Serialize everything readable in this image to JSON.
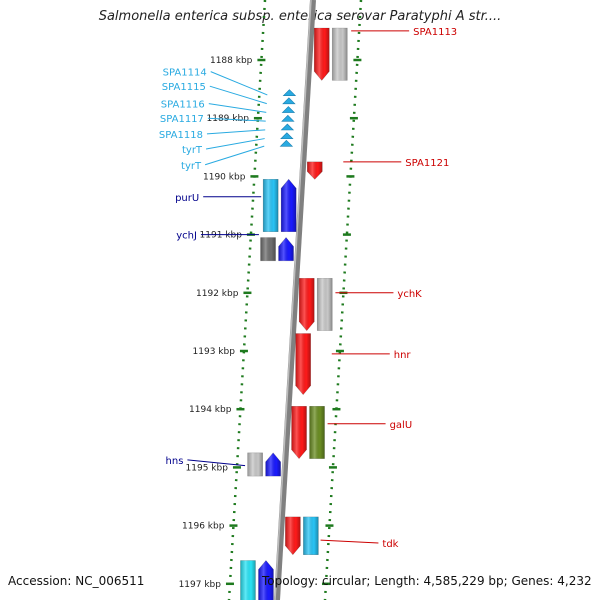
{
  "title": "Salmonella enterica subsp. enterica serovar Paratyphi A str....",
  "footer": {
    "accession": "Accession: NC_006511",
    "summary": "Topology: circular; Length: 4,585,229 bp; Genes: 4,232"
  },
  "colors": {
    "backbone": "#808080",
    "tick": "#1e7a1e",
    "label_kbp": "#222222",
    "cyan_label": "#29aae1",
    "blue_label": "#00008b",
    "red_label": "#cc0000"
  },
  "scale": {
    "ticks": [
      {
        "pos": 1188,
        "label": "1188 kbp"
      },
      {
        "pos": 1189,
        "label": "1189 kbp"
      },
      {
        "pos": 1190,
        "label": "1190 kbp"
      },
      {
        "pos": 1191,
        "label": "1191 kbp"
      },
      {
        "pos": 1192,
        "label": "1192 kbp"
      },
      {
        "pos": 1193,
        "label": "1193 kbp"
      },
      {
        "pos": 1194,
        "label": "1194 kbp"
      },
      {
        "pos": 1195,
        "label": "1195 kbp"
      },
      {
        "pos": 1196,
        "label": "1196 kbp"
      },
      {
        "pos": 1197,
        "label": "1197 kbp"
      }
    ]
  },
  "genes": [
    {
      "track": "plus-inner",
      "start": 1187.45,
      "end": 1188.35,
      "color": "#ff1a1a",
      "dir": "down"
    },
    {
      "track": "plus-outer",
      "start": 1187.45,
      "end": 1188.35,
      "color": "#c8c8c8",
      "dir": "none"
    },
    {
      "track": "plus-inner",
      "start": 1189.75,
      "end": 1190.05,
      "color": "#ff1a1a",
      "dir": "down"
    },
    {
      "track": "minus-inner",
      "start": 1190.05,
      "end": 1190.95,
      "color": "#1a1aff",
      "dir": "up"
    },
    {
      "track": "minus-outer",
      "start": 1190.05,
      "end": 1190.95,
      "color": "#29c4f6",
      "dir": "none"
    },
    {
      "track": "minus-inner",
      "start": 1191.05,
      "end": 1191.45,
      "color": "#1a1aff",
      "dir": "up"
    },
    {
      "track": "minus-outer",
      "start": 1191.05,
      "end": 1191.45,
      "color": "#707070",
      "dir": "none"
    },
    {
      "track": "plus-inner",
      "start": 1191.75,
      "end": 1192.65,
      "color": "#ff1a1a",
      "dir": "down"
    },
    {
      "track": "plus-outer",
      "start": 1191.75,
      "end": 1192.65,
      "color": "#c8c8c8",
      "dir": "none"
    },
    {
      "track": "plus-inner",
      "start": 1192.7,
      "end": 1193.75,
      "color": "#ff1a1a",
      "dir": "down"
    },
    {
      "track": "plus-inner",
      "start": 1193.95,
      "end": 1194.85,
      "color": "#ff1a1a",
      "dir": "down"
    },
    {
      "track": "plus-outer",
      "start": 1193.95,
      "end": 1194.85,
      "color": "#6b8e23",
      "dir": "none"
    },
    {
      "track": "minus-inner",
      "start": 1194.75,
      "end": 1195.15,
      "color": "#1a1aff",
      "dir": "up"
    },
    {
      "track": "minus-outer",
      "start": 1194.75,
      "end": 1195.15,
      "color": "#c8c8c8",
      "dir": "none"
    },
    {
      "track": "plus-inner",
      "start": 1195.85,
      "end": 1196.5,
      "color": "#ff1a1a",
      "dir": "down"
    },
    {
      "track": "plus-outer",
      "start": 1195.85,
      "end": 1196.5,
      "color": "#29c4f6",
      "dir": "none"
    },
    {
      "track": "minus-inner",
      "start": 1196.6,
      "end": 1197.4,
      "color": "#1a1aff",
      "dir": "up"
    },
    {
      "track": "minus-outer",
      "start": 1196.6,
      "end": 1197.4,
      "color": "#29e4f6",
      "dir": "none"
    }
  ],
  "trnas": [
    {
      "pos": 1188.57
    },
    {
      "pos": 1188.71
    },
    {
      "pos": 1188.86
    },
    {
      "pos": 1189.01
    },
    {
      "pos": 1189.16
    },
    {
      "pos": 1189.31
    },
    {
      "pos": 1189.44
    }
  ],
  "labels": [
    {
      "text": "SPA1113",
      "side": "right",
      "pos": 1187.5,
      "target": 1187.5,
      "color": "#cc0000"
    },
    {
      "text": "SPA1114",
      "side": "left",
      "pos": 1188.2,
      "target": 1188.6,
      "color": "#29aae1"
    },
    {
      "text": "SPA1115",
      "side": "left",
      "pos": 1188.45,
      "target": 1188.75,
      "color": "#29aae1"
    },
    {
      "text": "SPA1116",
      "side": "left",
      "pos": 1188.75,
      "target": 1188.9,
      "color": "#29aae1"
    },
    {
      "text": "SPA1117",
      "side": "left",
      "pos": 1189.0,
      "target": 1189.05,
      "color": "#29aae1"
    },
    {
      "text": "SPA1118",
      "side": "left",
      "pos": 1189.27,
      "target": 1189.2,
      "color": "#29aae1"
    },
    {
      "text": "tyrT",
      "side": "left",
      "pos": 1189.53,
      "target": 1189.35,
      "color": "#29aae1"
    },
    {
      "text": "tyrT",
      "side": "left",
      "pos": 1189.8,
      "target": 1189.48,
      "color": "#29aae1"
    },
    {
      "text": "SPA1121",
      "side": "right",
      "pos": 1189.75,
      "target": 1189.75,
      "color": "#cc0000"
    },
    {
      "text": "purU",
      "side": "left",
      "pos": 1190.35,
      "target": 1190.35,
      "color": "#00008b"
    },
    {
      "text": "ychJ",
      "side": "left",
      "pos": 1191.0,
      "target": 1191.0,
      "color": "#00008b"
    },
    {
      "text": "ychK",
      "side": "right",
      "pos": 1192.0,
      "target": 1192.0,
      "color": "#cc0000"
    },
    {
      "text": "hnr",
      "side": "right",
      "pos": 1193.05,
      "target": 1193.05,
      "color": "#cc0000"
    },
    {
      "text": "galU",
      "side": "right",
      "pos": 1194.25,
      "target": 1194.25,
      "color": "#cc0000"
    },
    {
      "text": "hns",
      "side": "left",
      "pos": 1194.87,
      "target": 1194.97,
      "color": "#00008b"
    },
    {
      "text": "tdk",
      "side": "right",
      "pos": 1196.3,
      "target": 1196.25,
      "color": "#cc0000"
    }
  ]
}
